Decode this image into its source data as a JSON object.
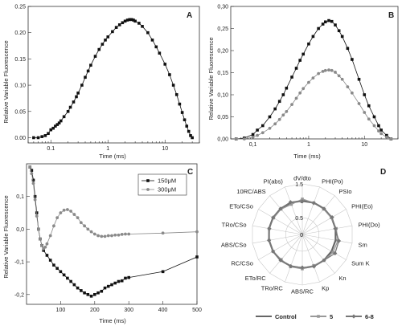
{
  "chart_data": [
    {
      "panel": "A",
      "type": "line",
      "title": "",
      "xlabel": "Time (ms)",
      "ylabel": "Relative Variable Fluorescence",
      "xscale": "log",
      "xlim": [
        0.04,
        40
      ],
      "ylim": [
        -0.01,
        0.25
      ],
      "xticks": [
        {
          "v": 0.1,
          "label": "0.1"
        },
        {
          "v": 1,
          "label": "1"
        },
        {
          "v": 10,
          "label": "10"
        }
      ],
      "yticks": [
        {
          "v": 0,
          "label": "0.00"
        },
        {
          "v": 0.05,
          "label": "0.05"
        },
        {
          "v": 0.1,
          "label": "0.10"
        },
        {
          "v": 0.15,
          "label": "0.15"
        },
        {
          "v": 0.2,
          "label": "0.20"
        },
        {
          "v": 0.25,
          "label": "0.25"
        }
      ],
      "series": [
        {
          "color": "#111111",
          "marker": "square",
          "x": [
            0.05,
            0.06,
            0.07,
            0.08,
            0.09,
            0.1,
            0.11,
            0.12,
            0.13,
            0.14,
            0.15,
            0.17,
            0.2,
            0.22,
            0.25,
            0.28,
            0.3,
            0.35,
            0.4,
            0.45,
            0.5,
            0.6,
            0.7,
            0.8,
            0.9,
            1.0,
            1.2,
            1.4,
            1.6,
            1.8,
            2.0,
            2.2,
            2.4,
            2.6,
            2.8,
            3.0,
            3.5,
            4,
            5,
            6,
            7,
            8,
            10,
            12,
            14,
            16,
            18,
            20,
            22,
            24,
            26,
            28,
            30
          ],
          "y": [
            0.0,
            0.0,
            0.002,
            0.004,
            0.008,
            0.015,
            0.018,
            0.022,
            0.025,
            0.028,
            0.032,
            0.04,
            0.05,
            0.058,
            0.068,
            0.078,
            0.085,
            0.1,
            0.115,
            0.127,
            0.138,
            0.155,
            0.168,
            0.178,
            0.186,
            0.192,
            0.202,
            0.21,
            0.215,
            0.219,
            0.222,
            0.224,
            0.225,
            0.225,
            0.224,
            0.222,
            0.218,
            0.212,
            0.2,
            0.186,
            0.173,
            0.161,
            0.14,
            0.12,
            0.1,
            0.082,
            0.064,
            0.048,
            0.034,
            0.022,
            0.012,
            0.004,
            0.0
          ]
        }
      ]
    },
    {
      "panel": "B",
      "type": "line",
      "title": "",
      "xlabel": "Time (ms)",
      "ylabel": "Relative Variable Fluorescence",
      "xscale": "log",
      "xlim": [
        0.04,
        40
      ],
      "ylim": [
        0,
        0.3
      ],
      "xticks": [
        {
          "v": 0.1,
          "label": "0,1"
        },
        {
          "v": 1,
          "label": "1"
        },
        {
          "v": 10,
          "label": "10"
        }
      ],
      "yticks": [
        {
          "v": 0,
          "label": "0,00"
        },
        {
          "v": 0.05,
          "label": "0,05"
        },
        {
          "v": 0.1,
          "label": "0,10"
        },
        {
          "v": 0.15,
          "label": "0,15"
        },
        {
          "v": 0.2,
          "label": "0,20"
        },
        {
          "v": 0.25,
          "label": "0,25"
        },
        {
          "v": 0.3,
          "label": "0,30"
        }
      ],
      "series": [
        {
          "color": "#111111",
          "marker": "square",
          "x": [
            0.05,
            0.07,
            0.1,
            0.12,
            0.15,
            0.2,
            0.25,
            0.3,
            0.35,
            0.4,
            0.5,
            0.6,
            0.7,
            0.8,
            1.0,
            1.2,
            1.5,
            1.8,
            2.0,
            2.3,
            2.6,
            3.0,
            3.5,
            4,
            5,
            6,
            8,
            10,
            12,
            15,
            18,
            20,
            25,
            30
          ],
          "y": [
            0.0,
            0.002,
            0.01,
            0.02,
            0.03,
            0.05,
            0.068,
            0.085,
            0.1,
            0.115,
            0.14,
            0.16,
            0.178,
            0.192,
            0.215,
            0.232,
            0.25,
            0.26,
            0.265,
            0.268,
            0.266,
            0.258,
            0.245,
            0.232,
            0.205,
            0.18,
            0.135,
            0.1,
            0.075,
            0.05,
            0.03,
            0.02,
            0.008,
            0.0
          ]
        },
        {
          "color": "#8a8a8a",
          "marker": "circle",
          "x": [
            0.05,
            0.07,
            0.1,
            0.12,
            0.15,
            0.2,
            0.25,
            0.3,
            0.35,
            0.4,
            0.5,
            0.6,
            0.7,
            0.8,
            1.0,
            1.2,
            1.5,
            1.8,
            2.0,
            2.3,
            2.6,
            3.0,
            3.5,
            4,
            5,
            6,
            8,
            10,
            12,
            15,
            18,
            20,
            25,
            30
          ],
          "y": [
            0.0,
            0.0,
            0.004,
            0.008,
            0.014,
            0.024,
            0.034,
            0.044,
            0.054,
            0.062,
            0.078,
            0.092,
            0.104,
            0.114,
            0.128,
            0.138,
            0.148,
            0.153,
            0.155,
            0.156,
            0.155,
            0.151,
            0.143,
            0.135,
            0.118,
            0.104,
            0.08,
            0.06,
            0.045,
            0.03,
            0.018,
            0.012,
            0.004,
            0.0
          ]
        }
      ]
    },
    {
      "panel": "C",
      "type": "line",
      "title": "",
      "xlabel": "Time (ms)",
      "ylabel": "Relative Variable Fluorescence",
      "xscale": "linear",
      "xlim": [
        0,
        500
      ],
      "ylim": [
        -0.23,
        0.2
      ],
      "xticks": [
        {
          "v": 100,
          "label": "100"
        },
        {
          "v": 200,
          "label": "200"
        },
        {
          "v": 300,
          "label": "300"
        },
        {
          "v": 400,
          "label": "400"
        },
        {
          "v": 500,
          "label": "500"
        }
      ],
      "yticks": [
        {
          "v": -0.2,
          "label": "-0,2"
        },
        {
          "v": -0.1,
          "label": "-0,1"
        },
        {
          "v": 0,
          "label": "0,0"
        },
        {
          "v": 0.1,
          "label": "0,1"
        }
      ],
      "legend": [
        {
          "name": "150μM",
          "color": "#111111",
          "marker": "square"
        },
        {
          "name": "300μM",
          "color": "#8a8a8a",
          "marker": "circle"
        }
      ],
      "series": [
        {
          "name": "150μM",
          "color": "#111111",
          "marker": "square",
          "x": [
            10,
            15,
            20,
            25,
            30,
            35,
            40,
            45,
            50,
            60,
            70,
            80,
            90,
            100,
            110,
            120,
            130,
            140,
            150,
            160,
            170,
            180,
            190,
            200,
            210,
            220,
            230,
            240,
            250,
            260,
            270,
            280,
            290,
            300,
            400,
            500
          ],
          "y": [
            0.19,
            0.18,
            0.15,
            0.1,
            0.05,
            0.0,
            -0.03,
            -0.05,
            -0.065,
            -0.08,
            -0.095,
            -0.11,
            -0.12,
            -0.13,
            -0.14,
            -0.15,
            -0.16,
            -0.17,
            -0.18,
            -0.188,
            -0.195,
            -0.2,
            -0.205,
            -0.2,
            -0.195,
            -0.19,
            -0.18,
            -0.175,
            -0.17,
            -0.165,
            -0.16,
            -0.158,
            -0.15,
            -0.148,
            -0.13,
            -0.085
          ]
        },
        {
          "name": "300μM",
          "color": "#8a8a8a",
          "marker": "circle",
          "x": [
            10,
            15,
            20,
            25,
            30,
            35,
            40,
            45,
            50,
            55,
            60,
            70,
            80,
            90,
            100,
            110,
            120,
            130,
            140,
            150,
            160,
            170,
            180,
            190,
            200,
            210,
            220,
            230,
            240,
            250,
            260,
            270,
            280,
            290,
            300,
            400,
            500
          ],
          "y": [
            0.19,
            0.17,
            0.14,
            0.09,
            0.04,
            0.0,
            -0.03,
            -0.05,
            -0.06,
            -0.055,
            -0.045,
            -0.02,
            0.01,
            0.035,
            0.05,
            0.058,
            0.06,
            0.055,
            0.045,
            0.035,
            0.02,
            0.01,
            0.0,
            -0.008,
            -0.015,
            -0.02,
            -0.022,
            -0.022,
            -0.02,
            -0.02,
            -0.018,
            -0.018,
            -0.016,
            -0.015,
            -0.015,
            -0.012,
            -0.008
          ]
        }
      ]
    },
    {
      "panel": "D",
      "type": "radar",
      "title": "",
      "rticks": [
        {
          "v": 0,
          "label": "0"
        },
        {
          "v": 0.5,
          "label": "0.5"
        },
        {
          "v": 1,
          "label": "1"
        },
        {
          "v": 1.5,
          "label": "1.5"
        }
      ],
      "rmax": 1.5,
      "axes": [
        "dV/dto",
        "PHI(Po)",
        "PSIo",
        "PHI(Eo)",
        "PHI(Do)",
        "Sm",
        "Sum K",
        "Kn",
        "Kp",
        "ABS/RC",
        "TRo/RC",
        "ETo/RC",
        "RC/CSo",
        "ABS/CSo",
        "TRo/CSo",
        "ETo/CSo",
        "10RC/ABS",
        "PI(abs)"
      ],
      "legend": [
        {
          "name": "Control",
          "color": "#666666",
          "marker": "none"
        },
        {
          "name": "5",
          "color": "#999999",
          "marker": "square"
        },
        {
          "name": "6-8",
          "color": "#777777",
          "marker": "diamond"
        }
      ],
      "series": [
        {
          "name": "Control",
          "color": "#666666",
          "marker": "none",
          "values": [
            1,
            1,
            1,
            1,
            1,
            1,
            1,
            1,
            1,
            1,
            1,
            1,
            1,
            1,
            1,
            1,
            1,
            1
          ]
        },
        {
          "name": "5",
          "color": "#999999",
          "marker": "square",
          "values": [
            1.05,
            1.0,
            0.98,
            0.99,
            1.02,
            1.07,
            1.05,
            1.0,
            0.98,
            1.02,
            1.02,
            0.97,
            1.0,
            1.0,
            1.0,
            0.98,
            0.98,
            0.95
          ]
        },
        {
          "name": "6-8",
          "color": "#777777",
          "marker": "diamond",
          "values": [
            0.98,
            0.99,
            1.0,
            1.02,
            0.99,
            1.1,
            1.12,
            1.0,
            1.01,
            0.98,
            1.0,
            1.0,
            1.0,
            1.0,
            0.99,
            1.0,
            1.0,
            1.02
          ]
        }
      ]
    }
  ]
}
